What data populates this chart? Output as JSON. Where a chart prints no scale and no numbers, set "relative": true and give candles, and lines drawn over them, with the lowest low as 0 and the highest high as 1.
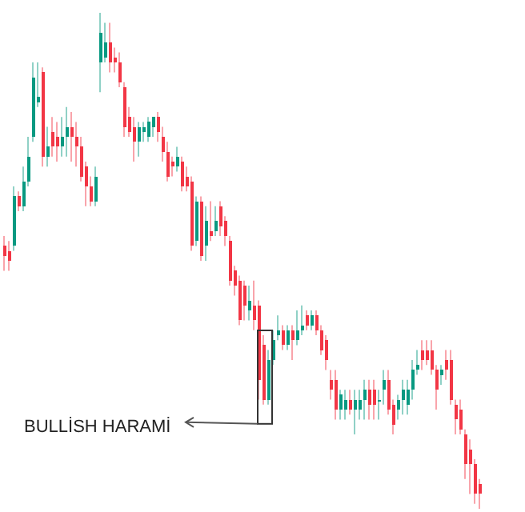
{
  "chart_data": {
    "type": "candlestick",
    "relative": true,
    "categories": [
      null,
      null,
      null,
      null,
      null,
      null,
      null,
      null,
      null,
      null,
      null,
      null,
      null,
      null,
      null,
      null,
      null,
      null,
      null,
      null,
      null,
      null,
      null,
      null,
      null,
      null,
      null,
      null,
      null,
      null,
      null,
      null,
      null,
      null,
      null,
      null,
      null,
      null,
      null,
      null,
      null,
      null,
      null,
      null,
      null,
      null,
      null,
      null,
      null,
      null,
      null,
      null,
      null,
      null,
      null,
      null,
      null,
      null,
      null,
      null,
      null,
      null,
      null,
      null,
      null,
      null,
      null,
      null,
      null,
      null,
      null,
      null,
      null,
      null,
      null,
      null,
      null,
      null,
      null,
      null,
      null,
      null,
      null,
      null,
      null,
      null,
      null,
      null,
      null,
      null,
      null,
      null,
      null,
      null,
      null,
      null,
      null,
      null,
      null,
      null
    ],
    "ohlc": [
      [
        0.53,
        0.55,
        0.48,
        0.51
      ],
      [
        0.52,
        0.54,
        0.48,
        0.5
      ],
      [
        0.53,
        0.65,
        0.52,
        0.63
      ],
      [
        0.63,
        0.64,
        0.6,
        0.61
      ],
      [
        0.61,
        0.69,
        0.6,
        0.66
      ],
      [
        0.66,
        0.75,
        0.65,
        0.71
      ],
      [
        0.75,
        0.9,
        0.74,
        0.87
      ],
      [
        0.82,
        0.9,
        0.81,
        0.83
      ],
      [
        0.88,
        0.89,
        0.69,
        0.71
      ],
      [
        0.71,
        0.77,
        0.69,
        0.73
      ],
      [
        0.76,
        0.79,
        0.71,
        0.73
      ],
      [
        0.75,
        0.78,
        0.7,
        0.73
      ],
      [
        0.73,
        0.79,
        0.71,
        0.75
      ],
      [
        0.75,
        0.81,
        0.71,
        0.77
      ],
      [
        0.77,
        0.8,
        0.7,
        0.75
      ],
      [
        0.75,
        0.78,
        0.69,
        0.73
      ],
      [
        0.73,
        0.75,
        0.66,
        0.67
      ],
      [
        0.69,
        0.7,
        0.61,
        0.65
      ],
      [
        0.65,
        0.67,
        0.61,
        0.62
      ],
      [
        0.62,
        0.69,
        0.61,
        0.67
      ],
      [
        0.9,
        1,
        0.84,
        0.96
      ],
      [
        0.91,
        0.98,
        0.9,
        0.94
      ],
      [
        0.94,
        0.98,
        0.88,
        0.9
      ],
      [
        0.91,
        0.93,
        0.88,
        0.9
      ],
      [
        0.9,
        0.92,
        0.85,
        0.86
      ],
      [
        0.85,
        0.86,
        0.75,
        0.77
      ],
      [
        0.79,
        0.81,
        0.75,
        0.76
      ],
      [
        0.77,
        0.79,
        0.7,
        0.74
      ],
      [
        0.74,
        0.78,
        0.71,
        0.77
      ],
      [
        0.76,
        0.78,
        0.74,
        0.77
      ],
      [
        0.75,
        0.79,
        0.74,
        0.78
      ],
      [
        0.77,
        0.79,
        0.75,
        0.79
      ],
      [
        0.79,
        0.8,
        0.74,
        0.76
      ],
      [
        0.75,
        0.77,
        0.7,
        0.72
      ],
      [
        0.72,
        0.74,
        0.66,
        0.67
      ],
      [
        0.7,
        0.71,
        0.67,
        0.69
      ],
      [
        0.69,
        0.73,
        0.68,
        0.71
      ],
      [
        0.7,
        0.71,
        0.64,
        0.65
      ],
      [
        0.67,
        0.69,
        0.64,
        0.65
      ],
      [
        0.66,
        0.67,
        0.52,
        0.53
      ],
      [
        0.54,
        0.63,
        0.53,
        0.62
      ],
      [
        0.62,
        0.63,
        0.5,
        0.51
      ],
      [
        0.53,
        0.61,
        0.5,
        0.58
      ],
      [
        0.56,
        0.62,
        0.54,
        0.55
      ],
      [
        0.56,
        0.61,
        0.55,
        0.58
      ],
      [
        0.61,
        0.62,
        0.55,
        0.57
      ],
      [
        0.58,
        0.59,
        0.53,
        0.55
      ],
      [
        0.54,
        0.55,
        0.45,
        0.46
      ],
      [
        0.48,
        0.49,
        0.43,
        0.45
      ],
      [
        0.46,
        0.47,
        0.37,
        0.38
      ],
      [
        0.45,
        0.46,
        0.38,
        0.41
      ],
      [
        0.4,
        0.45,
        0.38,
        0.42
      ],
      [
        0.41,
        0.46,
        0.36,
        0.38
      ],
      [
        0.41,
        0.42,
        0.22,
        0.26
      ],
      [
        0.33,
        0.35,
        0.21,
        0.22
      ],
      [
        0.22,
        0.32,
        0.21,
        0.3
      ],
      [
        0.3,
        0.36,
        0.29,
        0.34
      ],
      [
        0.35,
        0.39,
        0.34,
        0.36
      ],
      [
        0.36,
        0.37,
        0.32,
        0.33
      ],
      [
        0.33,
        0.37,
        0.32,
        0.36
      ],
      [
        0.36,
        0.37,
        0.3,
        0.34
      ],
      [
        0.34,
        0.4,
        0.33,
        0.36
      ],
      [
        0.36,
        0.41,
        0.35,
        0.37
      ],
      [
        0.39,
        0.4,
        0.36,
        0.37
      ],
      [
        0.37,
        0.4,
        0.36,
        0.39
      ],
      [
        0.39,
        0.4,
        0.35,
        0.36
      ],
      [
        0.36,
        0.37,
        0.31,
        0.32
      ],
      [
        0.34,
        0.35,
        0.28,
        0.3
      ],
      [
        0.26,
        0.28,
        0.22,
        0.24
      ],
      [
        0.26,
        0.28,
        0.18,
        0.2
      ],
      [
        0.2,
        0.24,
        0.18,
        0.23
      ],
      [
        0.2,
        0.24,
        0.18,
        0.22
      ],
      [
        0.22,
        0.24,
        0.19,
        0.2
      ],
      [
        0.2,
        0.24,
        0.15,
        0.22
      ],
      [
        0.2,
        0.24,
        0.18,
        0.22
      ],
      [
        0.22,
        0.26,
        0.18,
        0.24
      ],
      [
        0.24,
        0.26,
        0.18,
        0.21
      ],
      [
        0.24,
        0.26,
        0.18,
        0.21
      ],
      [
        0.22,
        0.24,
        0.18,
        0.22
      ],
      [
        0.24,
        0.28,
        0.21,
        0.26
      ],
      [
        0.26,
        0.28,
        0.19,
        0.2
      ],
      [
        0.21,
        0.22,
        0.15,
        0.17
      ],
      [
        0.2,
        0.23,
        0.18,
        0.22
      ],
      [
        0.22,
        0.26,
        0.19,
        0.24
      ],
      [
        0.21,
        0.26,
        0.19,
        0.24
      ],
      [
        0.24,
        0.3,
        0.22,
        0.28
      ],
      [
        0.28,
        0.32,
        0.27,
        0.29
      ],
      [
        0.32,
        0.34,
        0.28,
        0.3
      ],
      [
        0.32,
        0.34,
        0.29,
        0.3
      ],
      [
        0.32,
        0.34,
        0.27,
        0.28
      ],
      [
        0.28,
        0.29,
        0.2,
        0.24
      ],
      [
        0.27,
        0.29,
        0.25,
        0.28
      ],
      [
        0.3,
        0.32,
        0.26,
        0.28
      ],
      [
        0.3,
        0.32,
        0.21,
        0.22
      ],
      [
        0.21,
        0.22,
        0.15,
        0.18
      ],
      [
        0.2,
        0.22,
        0.15,
        0.16
      ],
      [
        0.15,
        0.16,
        0.06,
        0.09
      ],
      [
        0.12,
        0.14,
        0.03,
        0.09
      ],
      [
        0.09,
        0.1,
        0.01,
        0.03
      ],
      [
        0.05,
        0.06,
        0,
        0.03
      ]
    ],
    "colors": [
      "#f23645",
      "#f23645",
      "#089981",
      "#f23645",
      "#089981",
      "#089981",
      "#089981",
      "#089981",
      "#f23645",
      "#089981",
      "#f23645",
      "#f23645",
      "#089981",
      "#089981",
      "#f23645",
      "#f23645",
      "#f23645",
      "#f23645",
      "#f23645",
      "#089981",
      "#089981",
      "#089981",
      "#f23645",
      "#f23645",
      "#f23645",
      "#f23645",
      "#f23645",
      "#f23645",
      "#089981",
      "#089981",
      "#089981",
      "#089981",
      "#f23645",
      "#f23645",
      "#f23645",
      "#f23645",
      "#089981",
      "#f23645",
      "#f23645",
      "#f23645",
      "#089981",
      "#f23645",
      "#089981",
      "#f23645",
      "#089981",
      "#f23645",
      "#f23645",
      "#f23645",
      "#f23645",
      "#f23645",
      "#f23645",
      "#089981",
      "#f23645",
      "#f23645",
      "#f23645",
      "#089981",
      "#089981",
      "#089981",
      "#f23645",
      "#089981",
      "#f23645",
      "#089981",
      "#089981",
      "#f23645",
      "#089981",
      "#f23645",
      "#f23645",
      "#f23645",
      "#f23645",
      "#f23645",
      "#089981",
      "#089981",
      "#f23645",
      "#089981",
      "#089981",
      "#089981",
      "#f23645",
      "#f23645",
      "#089981",
      "#089981",
      "#f23645",
      "#f23645",
      "#089981",
      "#089981",
      "#089981",
      "#089981",
      "#089981",
      "#f23645",
      "#f23645",
      "#f23645",
      "#f23645",
      "#089981",
      "#f23645",
      "#f23645",
      "#f23645",
      "#f23645",
      "#f23645",
      "#f23645",
      "#f23645",
      "#f23645"
    ],
    "annotations": [
      "BULLİSH HARAMİ"
    ]
  }
}
